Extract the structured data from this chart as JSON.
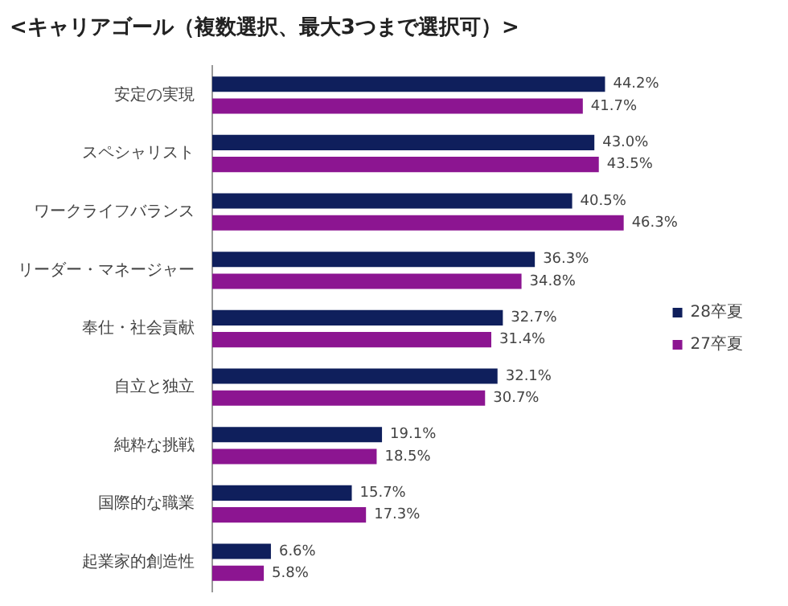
{
  "chart_data": {
    "type": "bar",
    "orientation": "horizontal",
    "title": "<キャリアゴール（複数選択、最大3つまで選択可）>",
    "legend": "right",
    "tick_labels": "y",
    "categories": [
      "安定の実現",
      "スペシャリスト",
      "ワークライフバランス",
      "リーダー・マネージャー",
      "奉仕・社会貢献",
      "自立と独立",
      "純粋な挑戦",
      "国際的な職業",
      "起業家的創造性"
    ],
    "series": [
      {
        "name": "28卒夏",
        "color": "#0f1f5c",
        "values": [
          44.2,
          43.0,
          40.5,
          36.3,
          32.7,
          32.1,
          19.1,
          15.7,
          6.6
        ],
        "value_labels": [
          "44.2%",
          "43.0%",
          "40.5%",
          "36.3%",
          "32.7%",
          "32.1%",
          "19.1%",
          "15.7%",
          "6.6%"
        ]
      },
      {
        "name": "27卒夏",
        "color": "#8c1591",
        "values": [
          41.7,
          43.5,
          46.3,
          34.8,
          31.4,
          30.7,
          18.5,
          17.3,
          5.8
        ],
        "value_labels": [
          "41.7%",
          "43.5%",
          "46.3%",
          "34.8%",
          "31.4%",
          "30.7%",
          "18.5%",
          "17.3%",
          "5.8%"
        ]
      }
    ]
  }
}
